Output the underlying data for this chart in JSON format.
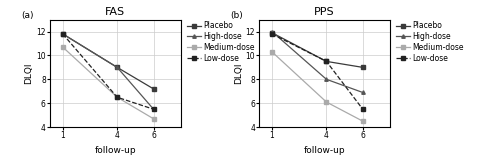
{
  "title_a": "FAS",
  "title_b": "PPS",
  "label_a": "(a)",
  "label_b": "(b)",
  "xlabel": "follow-up",
  "ylabel": "DLQI",
  "xticks": [
    1,
    4,
    6
  ],
  "ylim": [
    4,
    13
  ],
  "yticks": [
    4,
    6,
    8,
    10,
    12
  ],
  "fas": {
    "Placebo": [
      11.8,
      9.0,
      7.2
    ],
    "High-dose": [
      11.8,
      9.0,
      5.5
    ],
    "Medium-dose": [
      10.7,
      6.5,
      4.7
    ],
    "Low-dose": [
      11.8,
      6.5,
      5.5
    ]
  },
  "pps": {
    "Placebo": [
      11.9,
      9.5,
      9.0
    ],
    "High-dose": [
      12.0,
      8.0,
      6.9
    ],
    "Medium-dose": [
      10.3,
      6.1,
      4.5
    ],
    "Low-dose": [
      11.8,
      9.5,
      5.5
    ]
  },
  "line_styles": {
    "Placebo": {
      "color": "#3a3a3a",
      "marker": "s",
      "linestyle": "-",
      "markersize": 2.5
    },
    "High-dose": {
      "color": "#555555",
      "marker": "^",
      "linestyle": "-",
      "markersize": 2.5
    },
    "Medium-dose": {
      "color": "#aaaaaa",
      "marker": "s",
      "linestyle": "-",
      "markersize": 2.5
    },
    "Low-dose": {
      "color": "#222222",
      "marker": "s",
      "linestyle": "--",
      "markersize": 2.5
    }
  },
  "background_color": "#ffffff",
  "grid_color": "#cccccc",
  "title_fontsize": 8,
  "label_fontsize": 6.5,
  "tick_fontsize": 5.5,
  "legend_fontsize": 5.5,
  "xlim": [
    0.3,
    7.5
  ]
}
